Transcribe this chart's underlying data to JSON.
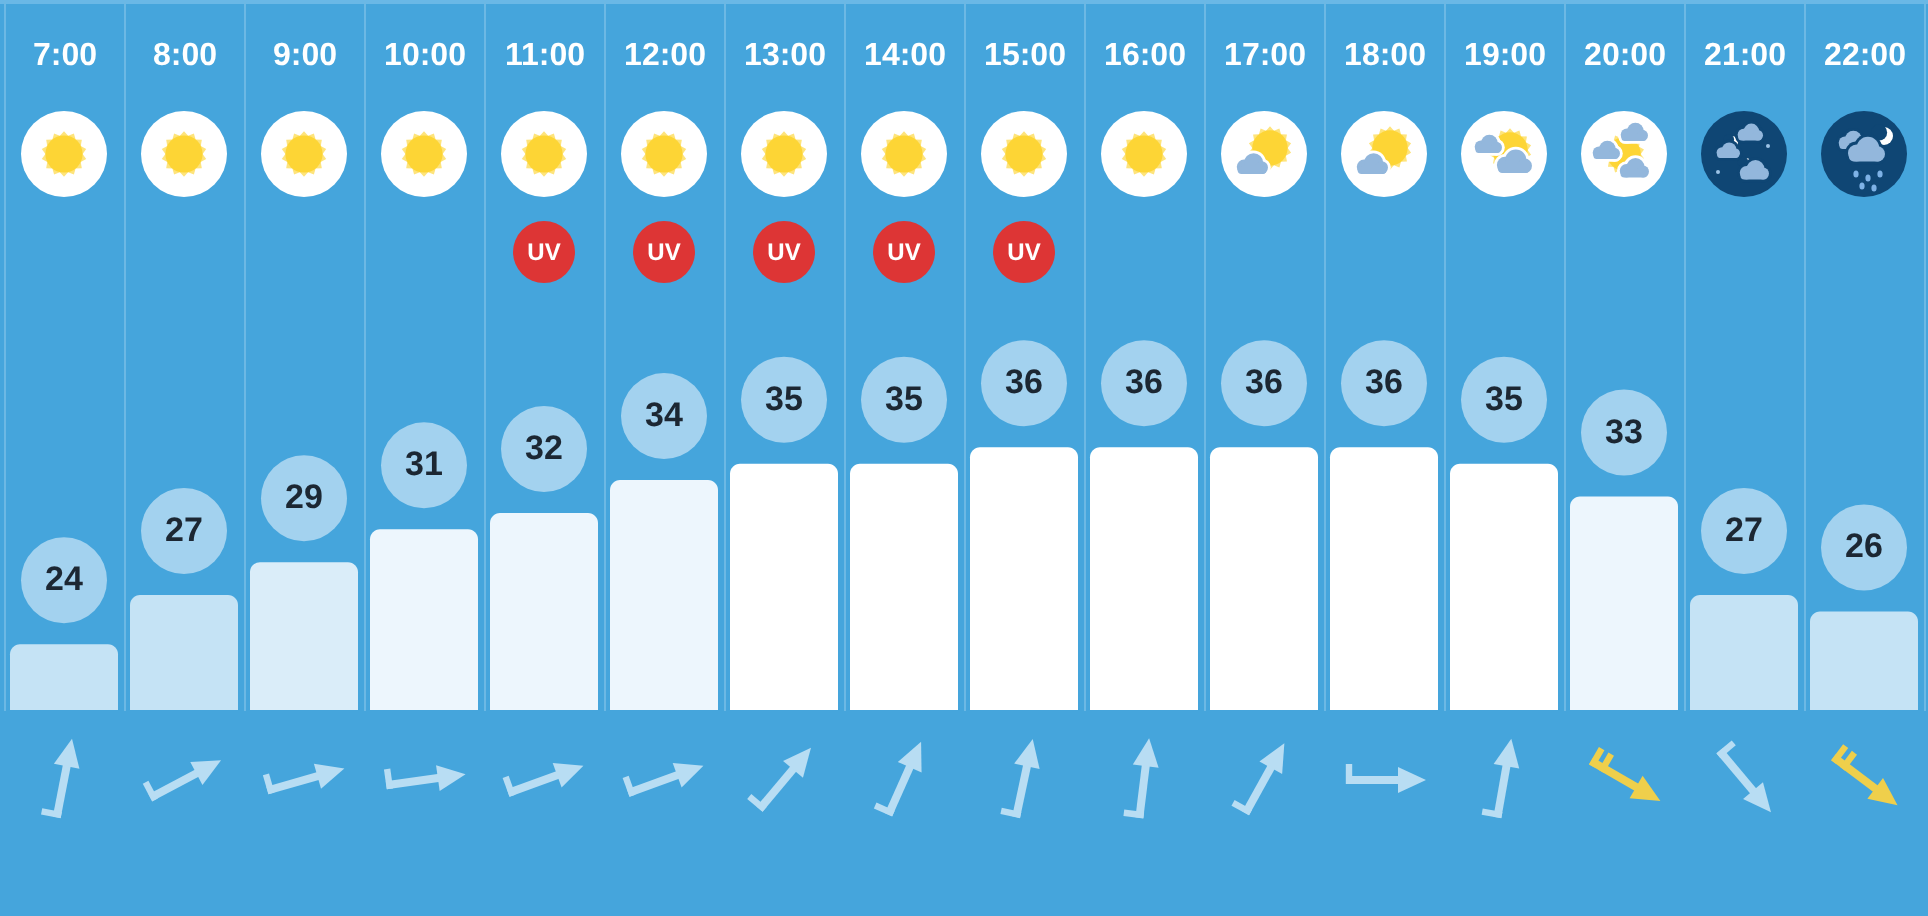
{
  "chart_data": {
    "type": "bar",
    "categories": [
      "7:00",
      "8:00",
      "9:00",
      "10:00",
      "11:00",
      "12:00",
      "13:00",
      "14:00",
      "15:00",
      "16:00",
      "17:00",
      "18:00",
      "19:00",
      "20:00",
      "21:00",
      "22:00"
    ],
    "values": [
      24,
      27,
      29,
      31,
      32,
      34,
      35,
      35,
      36,
      36,
      36,
      36,
      35,
      33,
      27,
      26
    ],
    "colors": [
      "#c5e3f5",
      "#c5e3f5",
      "#daedf9",
      "#edf6fd",
      "#edf6fd",
      "#edf6fd",
      "#ffffff",
      "#ffffff",
      "#ffffff",
      "#ffffff",
      "#ffffff",
      "#ffffff",
      "#ffffff",
      "#edf6fd",
      "#c5e3f5",
      "#c5e3f5"
    ],
    "ylim": [
      20,
      58
    ],
    "data_labels": true,
    "annotations": [
      "UV",
      "UV",
      "UV",
      "UV",
      "UV"
    ],
    "grid": "x",
    "tick_labels": "x"
  }
}
